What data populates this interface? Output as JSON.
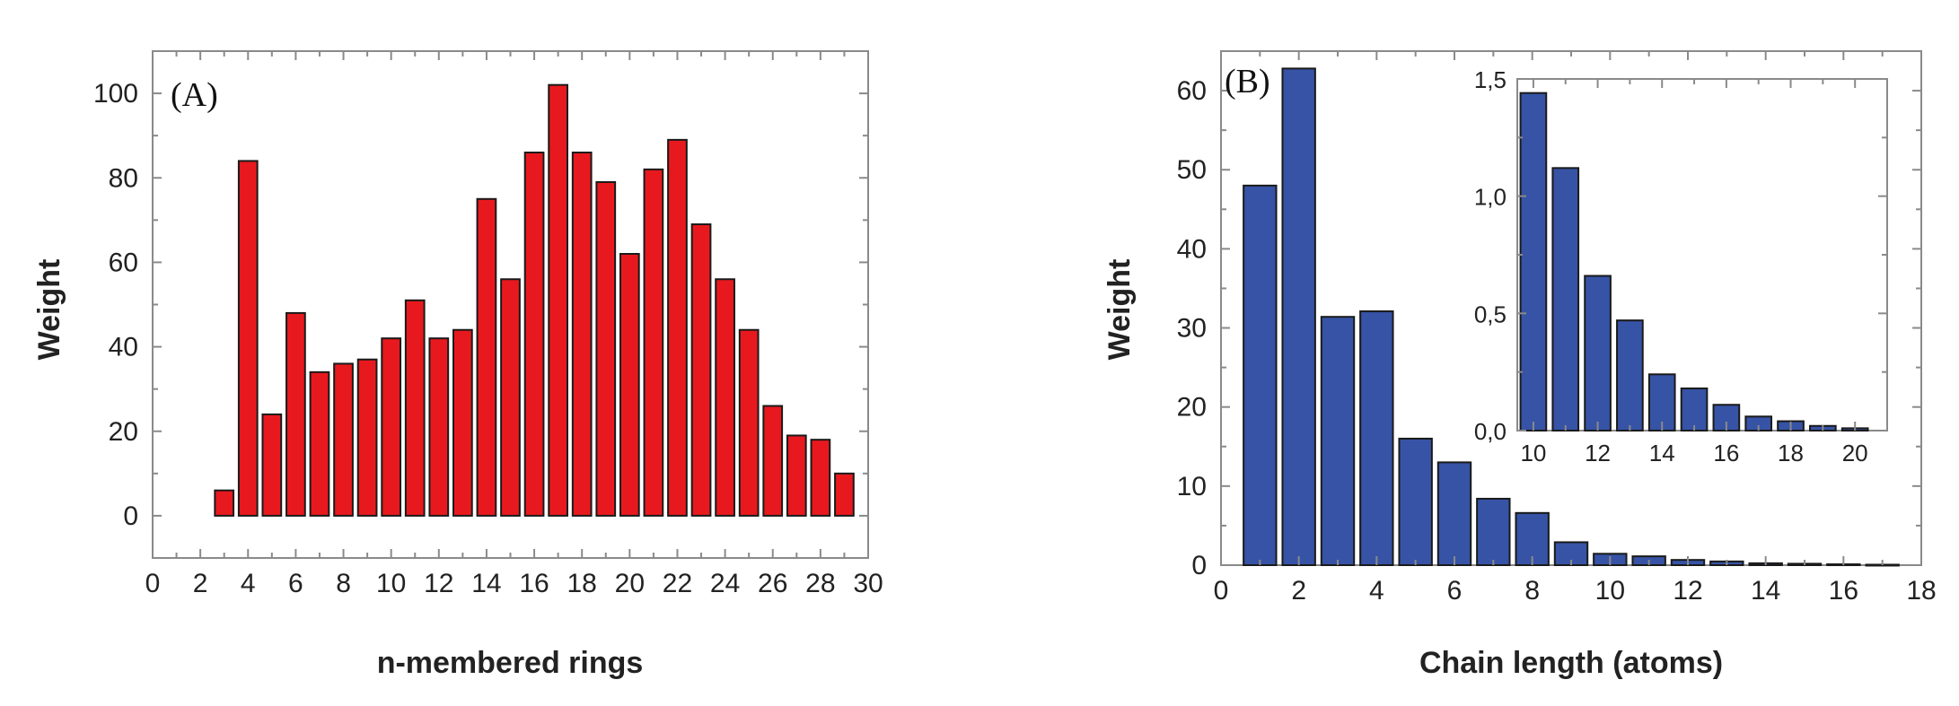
{
  "chart_data": [
    {
      "id": "A",
      "type": "bar",
      "panel_label": "(A)",
      "xlabel": "n-membered rings",
      "ylabel": "Weight",
      "xlim": [
        0,
        30
      ],
      "ylim": [
        -10,
        110
      ],
      "xticks": [
        0,
        2,
        4,
        6,
        8,
        10,
        12,
        14,
        16,
        18,
        20,
        22,
        24,
        26,
        28,
        30
      ],
      "yticks": [
        0,
        20,
        40,
        60,
        80,
        100
      ],
      "x": [
        3,
        4,
        5,
        6,
        7,
        8,
        9,
        10,
        11,
        12,
        13,
        14,
        15,
        16,
        17,
        18,
        19,
        20,
        21,
        22,
        23,
        24,
        25,
        26,
        27,
        28,
        29
      ],
      "values": [
        6,
        84,
        24,
        48,
        34,
        36,
        37,
        42,
        51,
        42,
        44,
        75,
        56,
        86,
        102,
        86,
        79,
        62,
        82,
        89,
        69,
        56,
        44,
        26,
        19,
        18,
        10
      ],
      "bar_color": "#e8191e",
      "grid": false
    },
    {
      "id": "B",
      "type": "bar",
      "panel_label": "(B)",
      "xlabel": "Chain length (atoms)",
      "ylabel": "Weight",
      "xlim": [
        0,
        18
      ],
      "ylim": [
        0,
        65
      ],
      "xticks": [
        0,
        2,
        4,
        6,
        8,
        10,
        12,
        14,
        16,
        18
      ],
      "yticks": [
        0,
        10,
        20,
        30,
        40,
        50,
        60
      ],
      "x": [
        1,
        2,
        3,
        4,
        5,
        6,
        7,
        8,
        9,
        10,
        11,
        12,
        13,
        14,
        15,
        16,
        17
      ],
      "values": [
        48,
        62.8,
        31.4,
        32.1,
        16,
        13,
        8.4,
        6.6,
        2.9,
        1.44,
        1.12,
        0.66,
        0.47,
        0.24,
        0.18,
        0.11,
        0.06
      ],
      "bar_color": "#3653a5",
      "grid": false,
      "inset": {
        "type": "bar",
        "xlim": [
          9.5,
          21
        ],
        "ylim": [
          0,
          1.5
        ],
        "xticks": [
          "10",
          "12",
          "14",
          "16",
          "18",
          "20"
        ],
        "yticks": [
          "0,0",
          "0,5",
          "1,0",
          "1,5"
        ],
        "x": [
          10,
          11,
          12,
          13,
          14,
          15,
          16,
          17,
          18,
          19,
          20
        ],
        "values": [
          1.44,
          1.12,
          0.66,
          0.47,
          0.24,
          0.18,
          0.11,
          0.06,
          0.04,
          0.02,
          0.01
        ],
        "bar_color": "#3653a5"
      }
    }
  ]
}
